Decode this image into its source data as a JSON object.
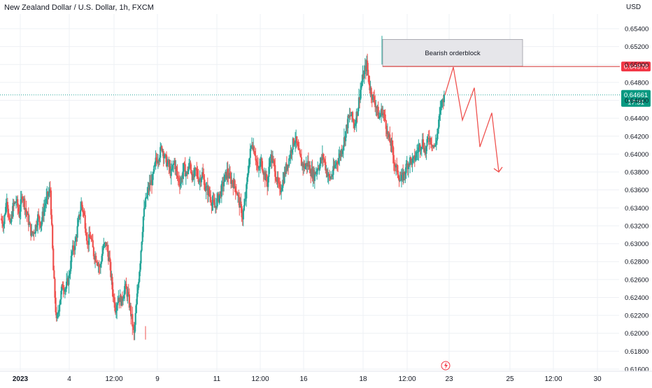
{
  "chart_title": "New Zealand Dollar / U.S. Dollar, 1h, FXCM",
  "currency_label": "USD",
  "colors": {
    "up": "#26a69a",
    "down": "#ef5350",
    "grid": "#eef0f4",
    "orderblock_fill": "#e6e6ea",
    "orderblock_border": "#d32f2f",
    "projection": "#ef5350",
    "current_price_bg": "#089981",
    "level_price_bg": "#f23645"
  },
  "chart_data": {
    "type": "candlestick",
    "y_axis": {
      "ticks": [
        "0.65400",
        "0.65200",
        "0.65000",
        "0.64800",
        "0.64600",
        "0.64400",
        "0.64200",
        "0.64000",
        "0.63800",
        "0.63600",
        "0.63400",
        "0.63200",
        "0.63000",
        "0.62800",
        "0.62600",
        "0.62400",
        "0.62200",
        "0.62000",
        "0.61800",
        "0.61600"
      ],
      "range": [
        0.6155,
        0.6558
      ]
    },
    "x_axis": {
      "ticks": [
        "2023",
        "4",
        "12:00",
        "9",
        "11",
        "12:00",
        "16",
        "18",
        "12:00",
        "23",
        "25",
        "12:00",
        "30"
      ]
    },
    "price_path": [
      [
        0.6328,
        0.6323,
        0.6352,
        0.6318,
        0.6341,
        0.6348,
        0.6333,
        0.6355,
        0.634,
        0.6325,
        0.631,
        0.6316,
        0.633,
        0.6322,
        0.634,
        0.6352,
        0.636,
        0.627,
        0.6212,
        0.6235,
        0.6254,
        0.625,
        0.6262,
        0.629,
        0.63,
        0.6322,
        0.6345,
        0.633,
        0.6301,
        0.6308,
        0.6289,
        0.6283,
        0.6272,
        0.6295,
        0.63,
        0.6282,
        0.625,
        0.6228,
        0.6241,
        0.6235,
        0.6252,
        0.6243,
        0.6222,
        0.6198,
        0.6241,
        0.6282,
        0.633,
        0.6352,
        0.6365,
        0.6372,
        0.6392,
        0.6398,
        0.6408,
        0.6395,
        0.6388,
        0.6378,
        0.6392,
        0.6374,
        0.6368,
        0.6385,
        0.6377,
        0.639,
        0.6372,
        0.6382,
        0.6371,
        0.6378,
        0.6362,
        0.6358,
        0.6348,
        0.634,
        0.635,
        0.6358,
        0.637,
        0.638,
        0.6372,
        0.6368,
        0.636,
        0.6345,
        0.633,
        0.6352,
        0.639,
        0.6414,
        0.6402,
        0.638,
        0.6392,
        0.6378,
        0.6367,
        0.6398,
        0.6389,
        0.6372,
        0.6358,
        0.637,
        0.6384,
        0.6395,
        0.641,
        0.6418,
        0.6402,
        0.639,
        0.6386,
        0.639,
        0.6381,
        0.6376,
        0.6384,
        0.639,
        0.6398,
        0.6382,
        0.6372,
        0.6378,
        0.6389,
        0.6396,
        0.6405,
        0.642,
        0.6438,
        0.6444,
        0.6432,
        0.6448,
        0.6472,
        0.6488,
        0.65,
        0.6475,
        0.6463,
        0.6455,
        0.644,
        0.6449,
        0.6438,
        0.6418,
        0.641,
        0.6389,
        0.638,
        0.637,
        0.6377,
        0.6388,
        0.6393,
        0.6391,
        0.64,
        0.6408,
        0.6414,
        0.6402,
        0.642,
        0.6414,
        0.6407,
        0.6428,
        0.6455,
        0.6466
      ]
    ],
    "key_points": {
      "start_price": 0.6328,
      "last_price": 0.64661,
      "swing_high": 0.6532,
      "swing_low": 0.6193
    },
    "orderblock": {
      "label": "Bearish orderblock",
      "top": 0.6528,
      "bottom": 0.64978
    },
    "horizontal_levels": [
      {
        "price": 0.64978,
        "label": "0.64978"
      }
    ],
    "current_price": {
      "price": 0.64661,
      "label": "0.64661",
      "countdown": "17:31"
    },
    "projection_path_prices": [
      0.6466,
      0.6497,
      0.6438,
      0.6474,
      0.6408,
      0.6446,
      0.638
    ]
  }
}
